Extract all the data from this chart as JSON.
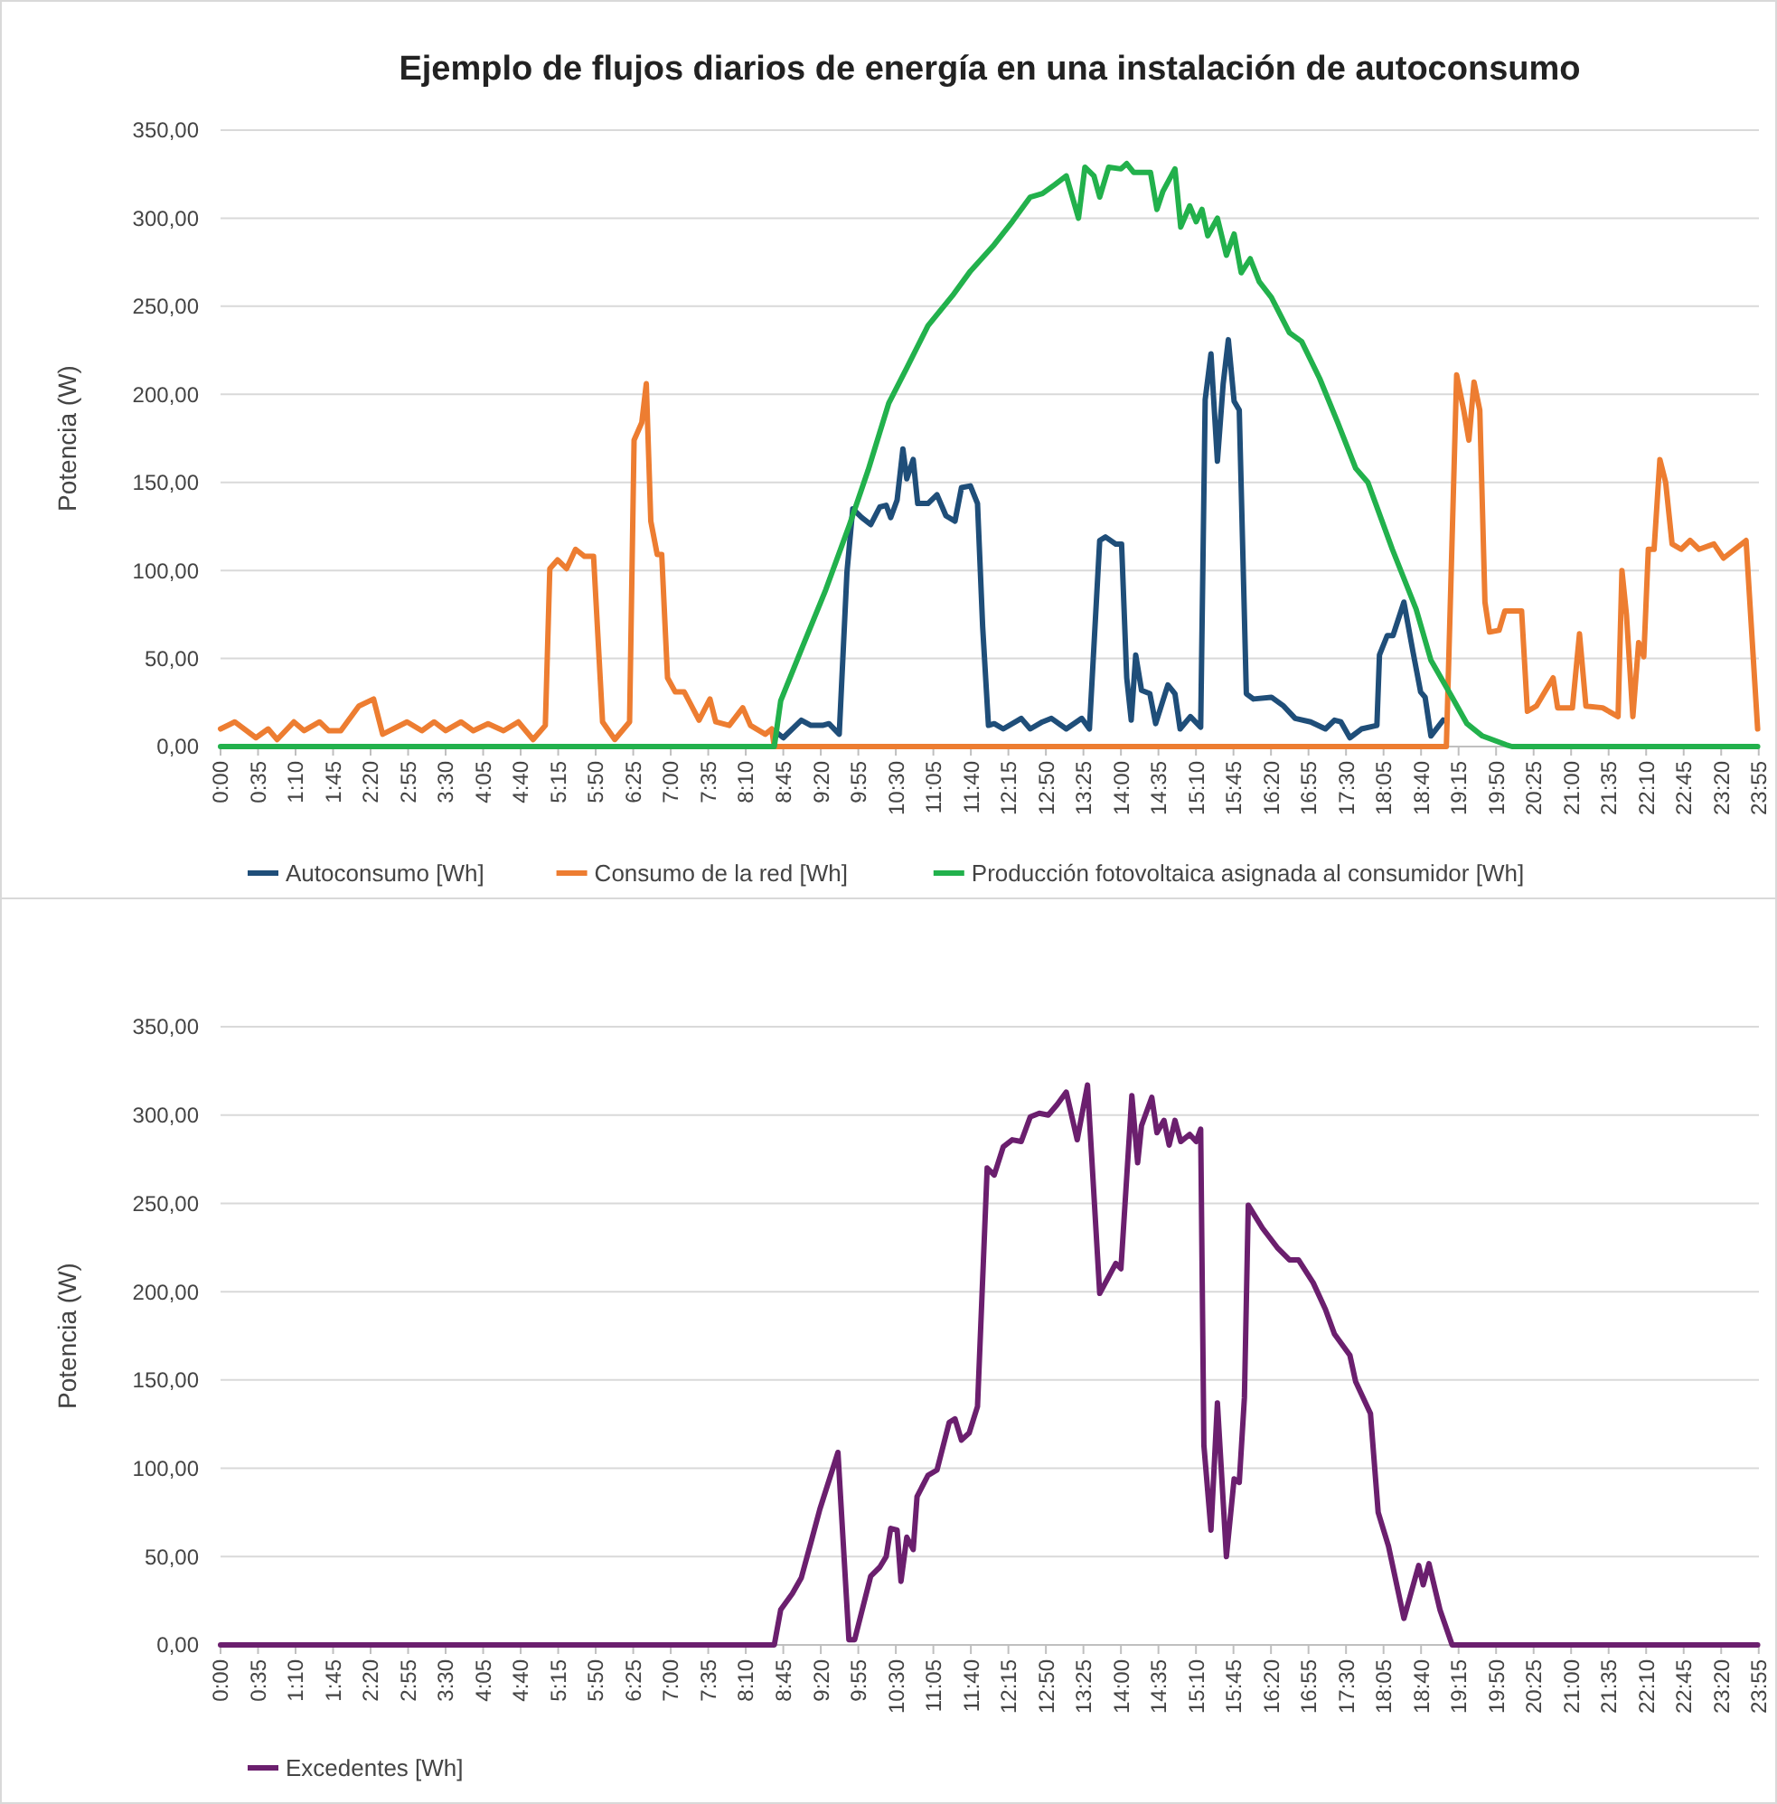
{
  "chart_data": [
    {
      "type": "line",
      "title": "Ejemplo de  flujos diarios de energía en una instalación de autoconsumo",
      "ylabel": "Potencia (W)",
      "legend": "bottom",
      "grid": "y",
      "xlim": [
        0,
        23.92
      ],
      "ylim": [
        0,
        350
      ],
      "yticks": [
        {
          "value": 0,
          "label": "0,00"
        },
        {
          "value": 50,
          "label": "50,00"
        },
        {
          "value": 100,
          "label": "100,00"
        },
        {
          "value": 150,
          "label": "150,00"
        },
        {
          "value": 200,
          "label": "200,00"
        },
        {
          "value": 250,
          "label": "250,00"
        },
        {
          "value": 300,
          "label": "300,00"
        },
        {
          "value": 350,
          "label": "350,00"
        }
      ],
      "xticks": [
        {
          "value": 0,
          "label": "0:00"
        },
        {
          "value": 0.5833,
          "label": "0:35"
        },
        {
          "value": 1.1667,
          "label": "1:10"
        },
        {
          "value": 1.75,
          "label": "1:45"
        },
        {
          "value": 2.3333,
          "label": "2:20"
        },
        {
          "value": 2.9167,
          "label": "2:55"
        },
        {
          "value": 3.5,
          "label": "3:30"
        },
        {
          "value": 4.0833,
          "label": "4:05"
        },
        {
          "value": 4.6667,
          "label": "4:40"
        },
        {
          "value": 5.25,
          "label": "5:15"
        },
        {
          "value": 5.8333,
          "label": "5:50"
        },
        {
          "value": 6.4167,
          "label": "6:25"
        },
        {
          "value": 7,
          "label": "7:00"
        },
        {
          "value": 7.5833,
          "label": "7:35"
        },
        {
          "value": 8.1667,
          "label": "8:10"
        },
        {
          "value": 8.75,
          "label": "8:45"
        },
        {
          "value": 9.3333,
          "label": "9:20"
        },
        {
          "value": 9.9167,
          "label": "9:55"
        },
        {
          "value": 10.5,
          "label": "10:30"
        },
        {
          "value": 11.0833,
          "label": "11:05"
        },
        {
          "value": 11.6667,
          "label": "11:40"
        },
        {
          "value": 12.25,
          "label": "12:15"
        },
        {
          "value": 12.8333,
          "label": "12:50"
        },
        {
          "value": 13.4167,
          "label": "13:25"
        },
        {
          "value": 14,
          "label": "14:00"
        },
        {
          "value": 14.5833,
          "label": "14:35"
        },
        {
          "value": 15.1667,
          "label": "15:10"
        },
        {
          "value": 15.75,
          "label": "15:45"
        },
        {
          "value": 16.3333,
          "label": "16:20"
        },
        {
          "value": 16.9167,
          "label": "16:55"
        },
        {
          "value": 17.5,
          "label": "17:30"
        },
        {
          "value": 18.0833,
          "label": "18:05"
        },
        {
          "value": 18.6667,
          "label": "18:40"
        },
        {
          "value": 19.25,
          "label": "19:15"
        },
        {
          "value": 19.8333,
          "label": "19:50"
        },
        {
          "value": 20.4167,
          "label": "20:25"
        },
        {
          "value": 21,
          "label": "21:00"
        },
        {
          "value": 21.5833,
          "label": "21:35"
        },
        {
          "value": 22.1667,
          "label": "22:10"
        },
        {
          "value": 22.75,
          "label": "22:45"
        },
        {
          "value": 23.3333,
          "label": "23:20"
        },
        {
          "value": 23.9167,
          "label": "23:55"
        }
      ],
      "series": [
        {
          "name": "Autoconsumo [Wh]",
          "color": "#1f4e79",
          "x": [
            8.61,
            8.75,
            9.03,
            9.18,
            9.36,
            9.46,
            9.62,
            9.74,
            9.83,
            9.97,
            10.11,
            10.25,
            10.35,
            10.42,
            10.52,
            10.61,
            10.67,
            10.77,
            10.84,
            11.0,
            11.14,
            11.28,
            11.42,
            11.52,
            11.66,
            11.77,
            11.85,
            11.94,
            12.03,
            12.17,
            12.45,
            12.59,
            12.78,
            12.92,
            13.15,
            13.39,
            13.51,
            13.67,
            13.76,
            13.92,
            14.01,
            14.09,
            14.16,
            14.23,
            14.32,
            14.45,
            14.54,
            14.73,
            14.84,
            14.92,
            15.08,
            15.24,
            15.31,
            15.4,
            15.5,
            15.59,
            15.67,
            15.76,
            15.84,
            15.95,
            16.06,
            16.34,
            16.53,
            16.71,
            16.95,
            17.18,
            17.32,
            17.42,
            17.56,
            17.74,
            17.98,
            18.02,
            18.14,
            18.23,
            18.4,
            18.54,
            18.66,
            18.73,
            18.82,
            19.01
          ],
          "values": [
            9,
            5,
            15,
            12,
            12,
            13,
            7,
            99,
            135,
            130,
            126,
            136,
            137,
            130,
            140,
            169,
            152,
            163,
            138,
            138,
            143,
            131,
            128,
            147,
            148,
            138,
            68,
            12,
            13,
            10,
            16,
            10,
            14,
            16,
            10,
            16,
            10,
            117,
            119,
            115,
            115,
            39,
            15,
            52,
            32,
            30,
            13,
            35,
            30,
            10,
            17,
            11,
            197,
            223,
            162,
            206,
            231,
            196,
            191,
            30,
            27,
            28,
            23,
            16,
            14,
            10,
            15,
            14,
            5,
            10,
            12,
            52,
            63,
            63,
            82,
            54,
            31,
            28,
            6,
            15
          ]
        },
        {
          "name": "Consumo de la red [Wh]",
          "color": "#ed7d31",
          "x": [
            0,
            0.22,
            0.55,
            0.74,
            0.88,
            1.14,
            1.3,
            1.54,
            1.68,
            1.87,
            2.15,
            2.38,
            2.52,
            2.9,
            3.13,
            3.32,
            3.5,
            3.74,
            3.93,
            4.16,
            4.4,
            4.63,
            4.86,
            5.05,
            5.12,
            5.24,
            5.38,
            5.52,
            5.66,
            5.8,
            5.94,
            6.13,
            6.36,
            6.43,
            6.55,
            6.62,
            6.69,
            6.79,
            6.86,
            6.95,
            7.07,
            7.21,
            7.44,
            7.61,
            7.7,
            7.91,
            8.12,
            8.24,
            8.47,
            8.57,
            8.61,
            19.06,
            19.22,
            19.33,
            19.41,
            19.49,
            19.58,
            19.66,
            19.73,
            19.88,
            19.97,
            20.23,
            20.32,
            20.46,
            20.72,
            20.79,
            21.02,
            21.13,
            21.23,
            21.49,
            21.73,
            21.79,
            21.86,
            21.96,
            22.05,
            22.13,
            22.2,
            22.29,
            22.38,
            22.47,
            22.57,
            22.71,
            22.85,
            22.99,
            23.22,
            23.37,
            23.72,
            23.9
          ],
          "values": [
            10,
            14,
            5,
            10,
            4,
            14,
            9,
            14,
            9,
            9,
            23,
            27,
            7,
            14,
            9,
            14,
            9,
            14,
            9,
            13,
            9,
            14,
            4,
            12,
            101,
            106,
            101,
            112,
            108,
            108,
            14,
            4,
            14,
            174,
            184,
            206,
            128,
            109,
            109,
            39,
            31,
            31,
            15,
            27,
            14,
            12,
            22,
            12,
            7,
            10,
            0,
            0,
            211,
            191,
            174,
            207,
            191,
            82,
            65,
            66,
            77,
            77,
            20,
            23,
            39,
            22,
            22,
            64,
            23,
            22,
            17,
            100,
            75,
            17,
            59,
            51,
            112,
            112,
            163,
            150,
            115,
            112,
            117,
            112,
            115,
            107,
            117,
            10
          ]
        },
        {
          "name": "Producción fotovoltaica asignada al consumidor [Wh]",
          "color": "#22b14c",
          "x": [
            0,
            8.61,
            8.71,
            9.03,
            9.41,
            9.78,
            10.07,
            10.39,
            10.67,
            11.0,
            11.38,
            11.66,
            12.03,
            12.31,
            12.59,
            12.78,
            12.97,
            13.15,
            13.34,
            13.44,
            13.58,
            13.67,
            13.81,
            14.0,
            14.09,
            14.2,
            14.46,
            14.56,
            14.65,
            14.84,
            14.93,
            15.07,
            15.17,
            15.26,
            15.35,
            15.5,
            15.64,
            15.76,
            15.87,
            16.01,
            16.15,
            16.34,
            16.62,
            16.81,
            17.09,
            17.37,
            17.65,
            17.84,
            18.22,
            18.59,
            18.82,
            19.15,
            19.38,
            19.62,
            19.99,
            20.08,
            23.9
          ],
          "values": [
            0,
            0,
            26,
            55,
            89,
            126,
            157,
            195,
            215,
            239,
            256,
            270,
            285,
            298,
            312,
            314,
            319,
            324,
            300,
            329,
            324,
            312,
            329,
            328,
            331,
            326,
            326,
            305,
            315,
            328,
            295,
            307,
            298,
            305,
            290,
            300,
            279,
            291,
            269,
            277,
            264,
            255,
            235,
            230,
            209,
            184,
            158,
            150,
            112,
            78,
            49,
            28,
            13,
            6,
            1,
            0,
            0
          ]
        }
      ]
    },
    {
      "type": "line",
      "ylabel": "Potencia (W)",
      "legend": "bottom",
      "grid": "y",
      "xlim": [
        0,
        23.92
      ],
      "ylim": [
        0,
        350
      ],
      "yticks": [
        {
          "value": 0,
          "label": "0,00"
        },
        {
          "value": 50,
          "label": "50,00"
        },
        {
          "value": 100,
          "label": "100,00"
        },
        {
          "value": 150,
          "label": "150,00"
        },
        {
          "value": 200,
          "label": "200,00"
        },
        {
          "value": 250,
          "label": "250,00"
        },
        {
          "value": 300,
          "label": "300,00"
        },
        {
          "value": 350,
          "label": "350,00"
        }
      ],
      "xticks": [
        {
          "value": 0,
          "label": "0:00"
        },
        {
          "value": 0.5833,
          "label": "0:35"
        },
        {
          "value": 1.1667,
          "label": "1:10"
        },
        {
          "value": 1.75,
          "label": "1:45"
        },
        {
          "value": 2.3333,
          "label": "2:20"
        },
        {
          "value": 2.9167,
          "label": "2:55"
        },
        {
          "value": 3.5,
          "label": "3:30"
        },
        {
          "value": 4.0833,
          "label": "4:05"
        },
        {
          "value": 4.6667,
          "label": "4:40"
        },
        {
          "value": 5.25,
          "label": "5:15"
        },
        {
          "value": 5.8333,
          "label": "5:50"
        },
        {
          "value": 6.4167,
          "label": "6:25"
        },
        {
          "value": 7,
          "label": "7:00"
        },
        {
          "value": 7.5833,
          "label": "7:35"
        },
        {
          "value": 8.1667,
          "label": "8:10"
        },
        {
          "value": 8.75,
          "label": "8:45"
        },
        {
          "value": 9.3333,
          "label": "9:20"
        },
        {
          "value": 9.9167,
          "label": "9:55"
        },
        {
          "value": 10.5,
          "label": "10:30"
        },
        {
          "value": 11.0833,
          "label": "11:05"
        },
        {
          "value": 11.6667,
          "label": "11:40"
        },
        {
          "value": 12.25,
          "label": "12:15"
        },
        {
          "value": 12.8333,
          "label": "12:50"
        },
        {
          "value": 13.4167,
          "label": "13:25"
        },
        {
          "value": 14,
          "label": "14:00"
        },
        {
          "value": 14.5833,
          "label": "14:35"
        },
        {
          "value": 15.1667,
          "label": "15:10"
        },
        {
          "value": 15.75,
          "label": "15:45"
        },
        {
          "value": 16.3333,
          "label": "16:20"
        },
        {
          "value": 16.9167,
          "label": "16:55"
        },
        {
          "value": 17.5,
          "label": "17:30"
        },
        {
          "value": 18.0833,
          "label": "18:05"
        },
        {
          "value": 18.6667,
          "label": "18:40"
        },
        {
          "value": 19.25,
          "label": "19:15"
        },
        {
          "value": 19.8333,
          "label": "19:50"
        },
        {
          "value": 20.4167,
          "label": "20:25"
        },
        {
          "value": 21,
          "label": "21:00"
        },
        {
          "value": 21.5833,
          "label": "21:35"
        },
        {
          "value": 22.1667,
          "label": "22:10"
        },
        {
          "value": 22.75,
          "label": "22:45"
        },
        {
          "value": 23.3333,
          "label": "23:20"
        },
        {
          "value": 23.9167,
          "label": "23:55"
        }
      ],
      "series": [
        {
          "name": "Excedentes [Wh]",
          "color": "#6b1f6e",
          "x": [
            0,
            8.61,
            8.71,
            8.89,
            9.03,
            9.18,
            9.32,
            9.6,
            9.77,
            9.86,
            10.11,
            10.25,
            10.35,
            10.42,
            10.52,
            10.58,
            10.67,
            10.77,
            10.83,
            11.0,
            11.14,
            11.33,
            11.42,
            11.52,
            11.64,
            11.77,
            11.92,
            12.03,
            12.17,
            12.31,
            12.45,
            12.59,
            12.73,
            12.87,
            13.01,
            13.15,
            13.32,
            13.48,
            13.67,
            13.92,
            14.0,
            14.17,
            14.26,
            14.32,
            14.48,
            14.56,
            14.67,
            14.75,
            14.84,
            14.93,
            15.07,
            15.17,
            15.24,
            15.29,
            15.4,
            15.5,
            15.64,
            15.76,
            15.84,
            15.92,
            15.98,
            16.2,
            16.43,
            16.62,
            16.76,
            16.99,
            17.18,
            17.32,
            17.56,
            17.65,
            17.88,
            18.0,
            18.16,
            18.4,
            18.63,
            18.7,
            18.79,
            18.96,
            19.15,
            23.9
          ],
          "values": [
            0,
            0,
            20,
            29,
            38,
            58,
            77,
            109,
            3,
            3,
            39,
            44,
            50,
            66,
            65,
            36,
            61,
            54,
            84,
            96,
            99,
            126,
            128,
            116,
            120,
            135,
            270,
            266,
            282,
            286,
            285,
            299,
            301,
            300,
            306,
            313,
            286,
            317,
            199,
            216,
            213,
            311,
            273,
            294,
            310,
            290,
            297,
            283,
            297,
            285,
            289,
            285,
            292,
            113,
            65,
            137,
            50,
            94,
            92,
            140,
            249,
            236,
            225,
            218,
            218,
            205,
            190,
            176,
            164,
            149,
            131,
            75,
            56,
            15,
            45,
            34,
            46,
            20,
            0,
            0
          ]
        }
      ]
    }
  ]
}
